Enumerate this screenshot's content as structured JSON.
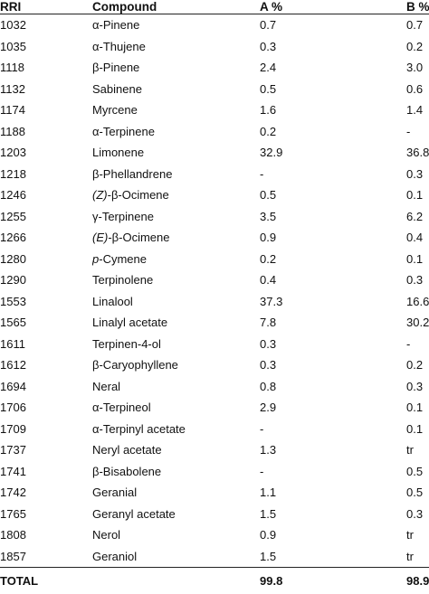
{
  "header": {
    "rri": "RRI",
    "compound": "Compound",
    "a": "A %",
    "b": "B %"
  },
  "rows": [
    {
      "rri": "1032",
      "compound": "α-Pinene",
      "a": "0.7",
      "b": "0.7"
    },
    {
      "rri": "1035",
      "compound": "α-Thujene",
      "a": "0.3",
      "b": "0.2"
    },
    {
      "rri": "1118",
      "compound": "β-Pinene",
      "a": "2.4",
      "b": "3.0"
    },
    {
      "rri": "1132",
      "compound": "Sabinene",
      "a": "0.5",
      "b": "0.6"
    },
    {
      "rri": "1174",
      "compound": "Myrcene",
      "a": "1.6",
      "b": "1.4"
    },
    {
      "rri": "1188",
      "compound": "α-Terpinene",
      "a": "0.2",
      "b": "-"
    },
    {
      "rri": "1203",
      "compound": "Limonene",
      "a": "32.9",
      "b": "36.8"
    },
    {
      "rri": "1218",
      "compound": "β-Phellandrene",
      "a": "-",
      "b": "0.3"
    },
    {
      "rri": "1246",
      "compound_prefix": "(Z)",
      "compound_rest": "-β-Ocimene",
      "a": "0.5",
      "b": "0.1"
    },
    {
      "rri": "1255",
      "compound": "γ-Terpinene",
      "a": "3.5",
      "b": "6.2"
    },
    {
      "rri": "1266",
      "compound_prefix": "(E)",
      "compound_rest": "-β-Ocimene",
      "a": "0.9",
      "b": "0.4"
    },
    {
      "rri": "1280",
      "compound_prefix": "p",
      "compound_rest": "-Cymene",
      "a": "0.2",
      "b": "0.1"
    },
    {
      "rri": "1290",
      "compound": "Terpinolene",
      "a": "0.4",
      "b": "0.3"
    },
    {
      "rri": "1553",
      "compound": "Linalool",
      "a": "37.3",
      "b": "16.6"
    },
    {
      "rri": "1565",
      "compound": "Linalyl acetate",
      "a": "7.8",
      "b": "30.2"
    },
    {
      "rri": "1611",
      "compound": "Terpinen-4-ol",
      "a": "0.3",
      "b": "-"
    },
    {
      "rri": "1612",
      "compound": "β-Caryophyllene",
      "a": "0.3",
      "b": "0.2"
    },
    {
      "rri": "1694",
      "compound": "Neral",
      "a": "0.8",
      "b": "0.3"
    },
    {
      "rri": "1706",
      "compound": "α-Terpineol",
      "a": "2.9",
      "b": "0.1"
    },
    {
      "rri": "1709",
      "compound": "α-Terpinyl acetate",
      "a": "-",
      "b": "0.1"
    },
    {
      "rri": "1737",
      "compound": "Neryl acetate",
      "a": "1.3",
      "b": "tr"
    },
    {
      "rri": "1741",
      "compound": "β-Bisabolene",
      "a": "-",
      "b": "0.5"
    },
    {
      "rri": "1742",
      "compound": "Geranial",
      "a": "1.1",
      "b": "0.5"
    },
    {
      "rri": "1765",
      "compound": "Geranyl acetate",
      "a": "1.5",
      "b": "0.3"
    },
    {
      "rri": "1808",
      "compound": "Nerol",
      "a": "0.9",
      "b": "tr"
    },
    {
      "rri": "1857",
      "compound": "Geraniol",
      "a": "1.5",
      "b": "tr"
    }
  ],
  "total": {
    "label": "TOTAL",
    "a": "99.8",
    "b": "98.9"
  }
}
